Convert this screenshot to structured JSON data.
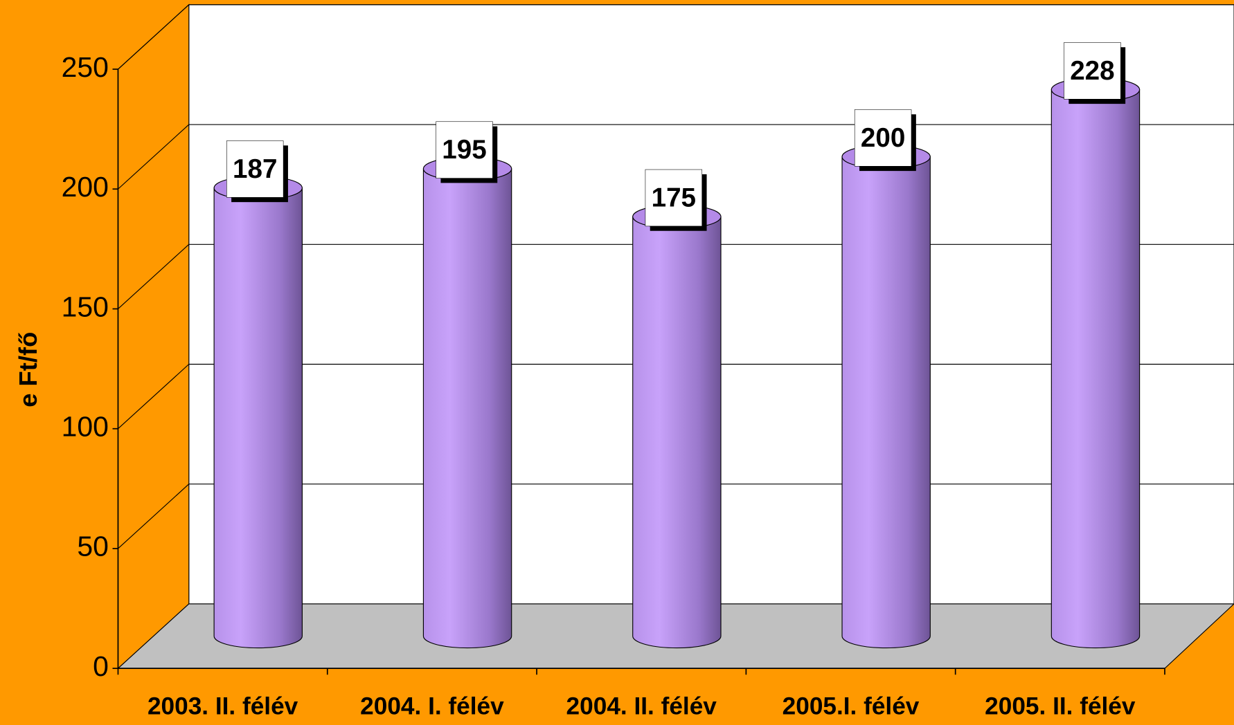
{
  "chart_data": {
    "type": "bar3d",
    "y_label": "e Ft/fő",
    "categories": [
      "2003. II. félév",
      "2004. I. félév",
      "2004. II. félév",
      "2005.I. félév",
      "2005. II. félév"
    ],
    "values": [
      187,
      195,
      175,
      200,
      228
    ],
    "color": "#b48ae8",
    "ylim": [
      0,
      250
    ],
    "yticks": [
      0,
      50,
      100,
      150,
      200,
      250
    ],
    "grid": true
  }
}
